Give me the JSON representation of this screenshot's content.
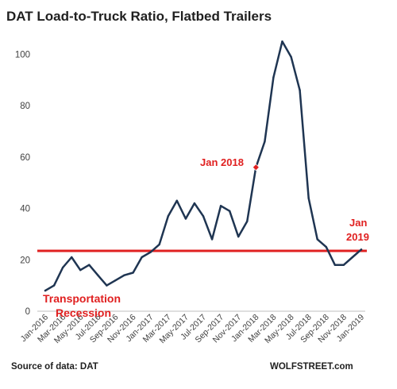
{
  "chart_data": {
    "type": "line",
    "title": "DAT Load-to-Truck  Ratio, Flatbed Trailers",
    "x": [
      "Jan-2016",
      "Feb-2016",
      "Mar-2016",
      "Apr-2016",
      "May-2016",
      "Jun-2016",
      "Jul-2016",
      "Aug-2016",
      "Sep-2016",
      "Oct-2016",
      "Nov-2016",
      "Dec-2016",
      "Jan-2017",
      "Feb-2017",
      "Mar-2017",
      "Apr-2017",
      "May-2017",
      "Jun-2017",
      "Jul-2017",
      "Aug-2017",
      "Sep-2017",
      "Oct-2017",
      "Nov-2017",
      "Dec-2017",
      "Jan-2018",
      "Feb-2018",
      "Mar-2018",
      "Apr-2018",
      "May-2018",
      "Jun-2018",
      "Jul-2018",
      "Aug-2018",
      "Sep-2018",
      "Oct-2018",
      "Nov-2018",
      "Dec-2018",
      "Jan-2019"
    ],
    "xtick_labels": [
      "Jan-2016",
      "Mar-2016",
      "May-2016",
      "Jul-2016",
      "Sep-2016",
      "Nov-2016",
      "Jan-2017",
      "Mar-2017",
      "May-2017",
      "Jul-2017",
      "Sep-2017",
      "Nov-2017",
      "Jan-2018",
      "Mar-2018",
      "May-2018",
      "Jul-2018",
      "Sep-2018",
      "Nov-2018",
      "Jan-2019"
    ],
    "series": [
      {
        "values": [
          8,
          10,
          17,
          21,
          16,
          18,
          14,
          10,
          12,
          14,
          15,
          21,
          23,
          26,
          37,
          43,
          36,
          42,
          37,
          28,
          41,
          39,
          29,
          35,
          56,
          66,
          91,
          105,
          99,
          86,
          44,
          28,
          25,
          18,
          18,
          21,
          24
        ],
        "color": "#1f3552"
      }
    ],
    "ylim": [
      0,
      110
    ],
    "yticks": [
      0,
      20,
      40,
      60,
      80,
      100
    ],
    "grid": false,
    "reference_line": {
      "value": 23.5,
      "color": "#e02020"
    },
    "highlight_point": {
      "x": "Jan-2018",
      "value": 56,
      "color": "#e02020"
    },
    "annotations": {
      "highlight_label": "Jan 2018",
      "end_label_line1": "Jan",
      "end_label_line2": "2019",
      "recession_line1": "Transportation",
      "recession_line2": "Recession"
    }
  },
  "footer": {
    "source": "Source of data: DAT",
    "brand": "WOLFSTREET.com"
  }
}
